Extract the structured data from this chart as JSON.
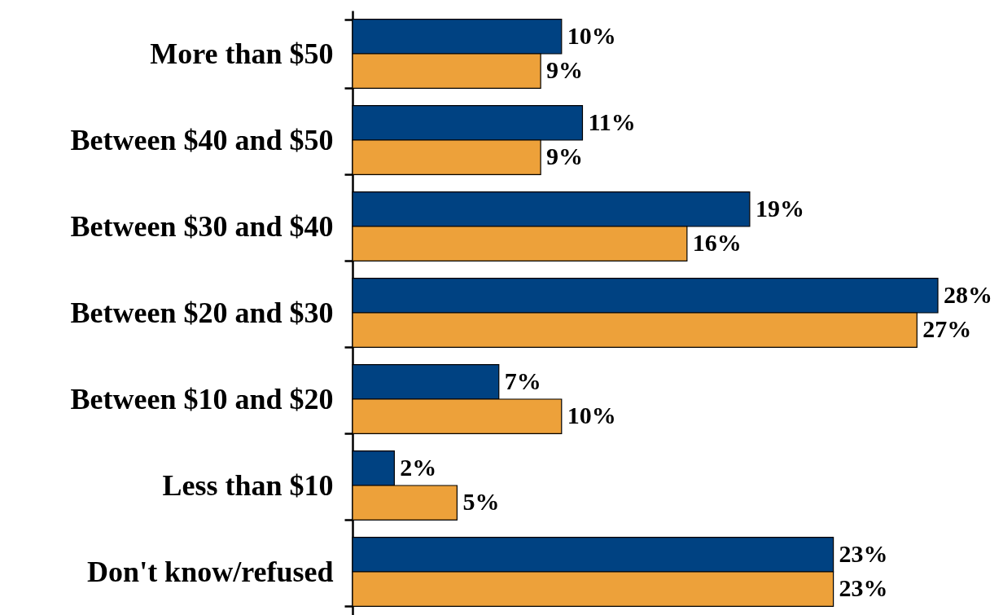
{
  "chart_data": {
    "type": "bar",
    "orientation": "horizontal",
    "categories": [
      "More than $50",
      "Between $40 and $50",
      "Between $30 and $40",
      "Between $20 and $30",
      "Between $10 and $20",
      "Less than $10",
      "Don't know/refused"
    ],
    "series": [
      {
        "color": "#004282",
        "values": [
          10,
          11,
          19,
          28,
          7,
          2,
          23
        ],
        "value_labels": [
          "10%",
          "11%",
          "19%",
          "28%",
          "7%",
          "2%",
          "23%"
        ]
      },
      {
        "color": "#eda13a",
        "values": [
          9,
          9,
          16,
          27,
          10,
          5,
          23
        ],
        "value_labels": [
          "9%",
          "9%",
          "16%",
          "27%",
          "10%",
          "5%",
          "23%"
        ]
      }
    ],
    "tick_labels": "y"
  }
}
